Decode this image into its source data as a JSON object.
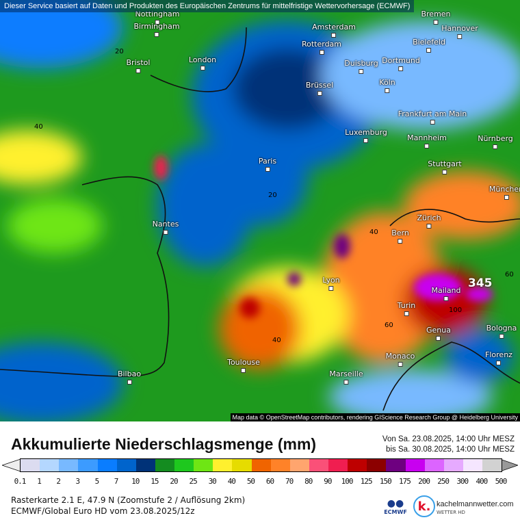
{
  "banner": "Dieser Service basiert auf Daten und Produkten des Europäischen Zentrums für mittelfristige Wettervorhersage (ECMWF)",
  "attribution": "Map data © OpenStreetMap contributors, rendering GIScience Research Group @ Heidelberg University",
  "cities": [
    {
      "name": "Nottingham"
    },
    {
      "name": "Bremen"
    },
    {
      "name": "Birmingham"
    },
    {
      "name": "Amsterdam"
    },
    {
      "name": "Hannover"
    },
    {
      "name": "Rotterdam"
    },
    {
      "name": "Bielefeld"
    },
    {
      "name": "Bristol"
    },
    {
      "name": "London"
    },
    {
      "name": "Duisburg"
    },
    {
      "name": "Dortmund"
    },
    {
      "name": "Brüssel"
    },
    {
      "name": "Köln"
    },
    {
      "name": "Frankfurt am Main"
    },
    {
      "name": "Luxemburg"
    },
    {
      "name": "Mannheim"
    },
    {
      "name": "Nürnberg"
    },
    {
      "name": "Paris"
    },
    {
      "name": "Stuttgart"
    },
    {
      "name": "München"
    },
    {
      "name": "Zürich"
    },
    {
      "name": "Bern"
    },
    {
      "name": "Nantes"
    },
    {
      "name": "Lyon"
    },
    {
      "name": "Mailand"
    },
    {
      "name": "Turin"
    },
    {
      "name": "Genua"
    },
    {
      "name": "Bologna"
    },
    {
      "name": "Monaco"
    },
    {
      "name": "Florenz"
    },
    {
      "name": "Toulouse"
    },
    {
      "name": "Bilbao"
    },
    {
      "name": "Marseille"
    }
  ],
  "max_value": "345",
  "title": "Akkumulierte Niederschlagsmenge (mm)",
  "period": {
    "from": "Von Sa. 23.08.2025, 14:00 Uhr MESZ",
    "to": "bis Sa. 30.08.2025, 14:00 Uhr MESZ"
  },
  "scale": {
    "colors": [
      "#dcdcf0",
      "#b4d7ff",
      "#78b9ff",
      "#3c9bff",
      "#0a7dff",
      "#0064cc",
      "#003278",
      "#148c20",
      "#1ec81e",
      "#6ee614",
      "#fff02e",
      "#e6dc00",
      "#f06400",
      "#ff8228",
      "#ffa56e",
      "#fa5078",
      "#f01e50",
      "#be0000",
      "#8c0000",
      "#6e0080",
      "#c800f0",
      "#dc64ff",
      "#e6aaff",
      "#f5e6ff",
      "#d2d2d2",
      "#a0a0a0"
    ],
    "ticks": [
      "0.1",
      "1",
      "2",
      "3",
      "5",
      "7",
      "10",
      "15",
      "20",
      "25",
      "30",
      "40",
      "50",
      "60",
      "70",
      "80",
      "90",
      "100",
      "125",
      "150",
      "175",
      "200",
      "250",
      "300",
      "400",
      "500"
    ]
  },
  "info": {
    "line1": "Rasterkarte 2.1 E, 47.9 N (Zoomstufe 2 / Auflösung 2km)",
    "line2": "ECMWF/Global Euro HD vom  23.08.2025/12z"
  },
  "logos": {
    "ecmwf": "ECMWF",
    "k": "k.",
    "site": "kachelmannwetter.com",
    "sub": "WETTER HD"
  }
}
